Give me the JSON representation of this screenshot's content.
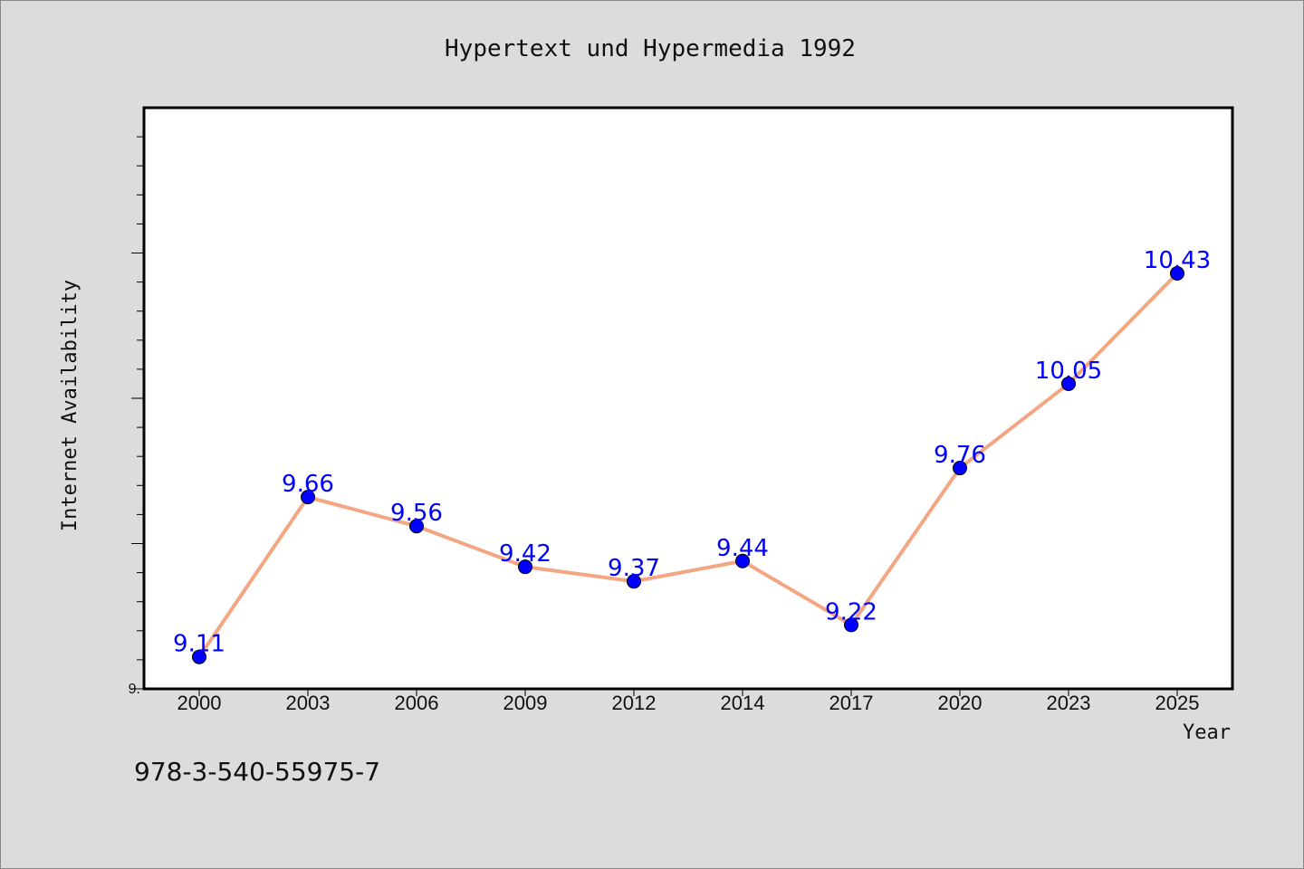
{
  "chart_data": {
    "type": "line",
    "title": "Hypertext und Hypermedia 1992",
    "xlabel": "Year",
    "ylabel": "Internet Availability",
    "categories": [
      "2000",
      "2003",
      "2006",
      "2009",
      "2012",
      "2014",
      "2017",
      "2020",
      "2023",
      "2025"
    ],
    "series": [
      {
        "values": [
          9.11,
          9.66,
          9.56,
          9.42,
          9.37,
          9.44,
          9.22,
          9.76,
          10.05,
          10.43
        ],
        "labels": [
          "9.11",
          "9.66",
          "9.56",
          "9.42",
          "9.37",
          "9.44",
          "9.22",
          "9.76",
          "10.05",
          "10.43"
        ]
      }
    ],
    "ylim": [
      9.0,
      11.0
    ],
    "y_tick_label": "9.",
    "grid": false,
    "line_color": "#f4a582",
    "marker_color": "#0000ff",
    "label_color": "#0000ff",
    "plot_background": "#ffffff",
    "figure_background": "#dcdcdc"
  },
  "footnote": "978-3-540-55975-7"
}
